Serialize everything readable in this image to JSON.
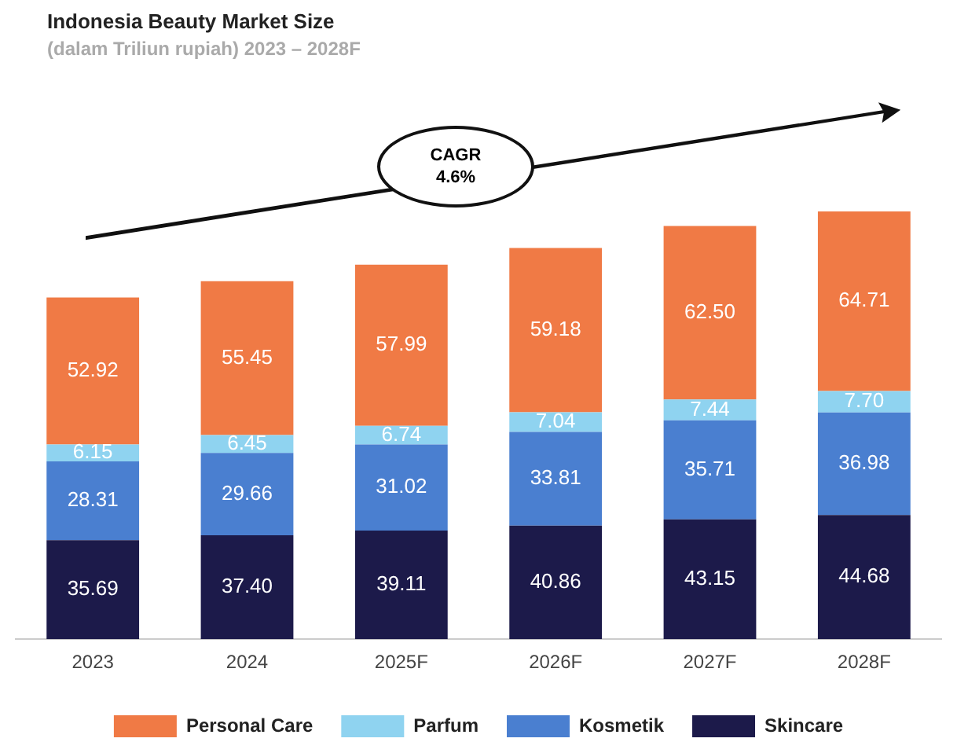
{
  "chart_data": {
    "type": "bar",
    "title": "Indonesia Beauty Market Size",
    "subtitle": "(dalam Triliun rupiah) 2023 – 2028F",
    "categories": [
      "2023",
      "2024",
      "2025F",
      "2026F",
      "2027F",
      "2028F"
    ],
    "stacked": true,
    "legend": "bottom",
    "grid": false,
    "annotations": [
      "CAGR\n4.6%"
    ],
    "series": [
      {
        "name": "Skincare",
        "color": "#1c1a4a",
        "values": [
          35.69,
          37.4,
          39.11,
          40.86,
          43.15,
          44.68
        ],
        "value_labels": [
          "35.69",
          "37.40",
          "39.11",
          "40.86",
          "43.15",
          "44.68"
        ]
      },
      {
        "name": "Kosmetik",
        "color": "#4a7fd0",
        "values": [
          28.31,
          29.66,
          31.02,
          33.81,
          35.71,
          36.98
        ],
        "value_labels": [
          "28.31",
          "29.66",
          "31.02",
          "33.81",
          "35.71",
          "36.98"
        ]
      },
      {
        "name": "Parfum",
        "color": "#8fd3f0",
        "values": [
          6.15,
          6.45,
          6.74,
          7.04,
          7.44,
          7.7
        ],
        "value_labels": [
          "6.15",
          "6.45",
          "6.74",
          "7.04",
          "7.44",
          "7.70"
        ]
      },
      {
        "name": "Personal Care",
        "color": "#f07a45",
        "values": [
          52.92,
          55.45,
          57.99,
          59.18,
          62.5,
          64.71
        ],
        "value_labels": [
          "52.92",
          "55.45",
          "57.99",
          "59.18",
          "62.50",
          "64.71"
        ]
      }
    ]
  }
}
